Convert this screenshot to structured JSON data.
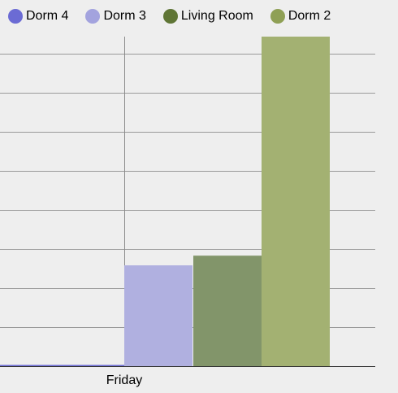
{
  "chart_data": {
    "type": "bar",
    "title": "",
    "xlabel": "",
    "ylabel": "",
    "categories": [
      "Friday"
    ],
    "ylim": [
      0,
      8.5
    ],
    "grid": true,
    "legend_position": "top-left",
    "series": [
      {
        "name": "Dorm 4",
        "color": "#6b6bd4",
        "fill": "#6b6bd4",
        "values": [
          0.03
        ]
      },
      {
        "name": "Dorm 3",
        "color": "#a3a3de",
        "fill": "#b0b0e0",
        "values": [
          2.6
        ]
      },
      {
        "name": "Living Room",
        "color": "#5f7535",
        "fill": "#82956a",
        "values": [
          2.85
        ]
      },
      {
        "name": "Dorm 2",
        "color": "#8fa055",
        "fill": "#a3b172",
        "values": [
          8.5
        ]
      }
    ]
  }
}
